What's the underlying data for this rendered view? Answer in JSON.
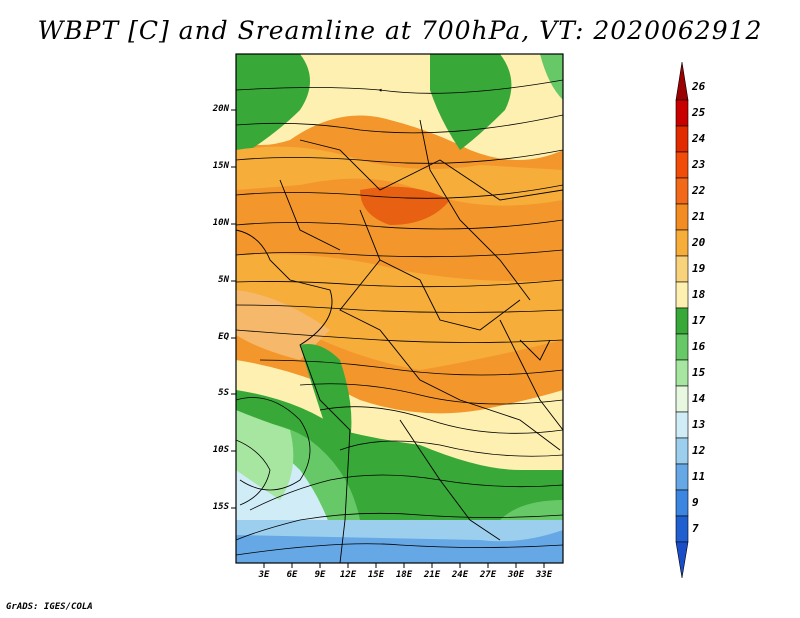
{
  "title": "WBPT [C] and Sreamline at 700hPa, VT: 2020062912",
  "footer": "GrADS: IGES/COLA",
  "axes": {
    "lat_ticks": [
      "20N",
      "15N",
      "10N",
      "5N",
      "EQ",
      "5S",
      "10S",
      "15S"
    ],
    "lon_ticks": [
      "3E",
      "6E",
      "9E",
      "12E",
      "15E",
      "18E",
      "21E",
      "24E",
      "27E",
      "30E",
      "33E"
    ]
  },
  "colorbar": {
    "labels": [
      "26",
      "25",
      "24",
      "23",
      "22",
      "21",
      "20",
      "19",
      "18",
      "17",
      "16",
      "15",
      "14",
      "13",
      "12",
      "11",
      "9",
      "7"
    ],
    "colors": [
      "#9a0000",
      "#c80000",
      "#e22b00",
      "#f24c0a",
      "#f2691a",
      "#f38c22",
      "#f6ad3a",
      "#f9d27c",
      "#fdf0b0",
      "#38a838",
      "#66c866",
      "#a6e6a0",
      "#e8f8e0",
      "#d0ecf6",
      "#9ccfee",
      "#66a8e6",
      "#3c85e0",
      "#1f5fd0",
      "#1a4ec8"
    ]
  },
  "map": {
    "variable": "Wet-bulb potential temperature",
    "level": "700hPa",
    "valid_time": "2020062912",
    "domain_lon": [
      0,
      35
    ],
    "domain_lat": [
      -20,
      25
    ]
  }
}
